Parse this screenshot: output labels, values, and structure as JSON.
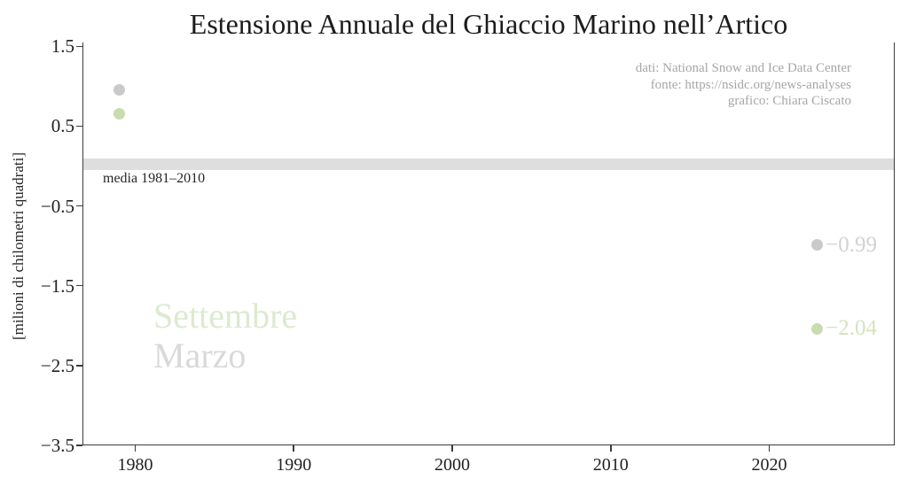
{
  "title": "Estensione Annuale del Ghiaccio Marino nell’Artico",
  "credits": {
    "lines": [
      "dati: National Snow and Ice Data Center",
      "fonte: https://nsidc.org/news-analyses",
      "grafico: Chiara Ciscato"
    ]
  },
  "colors": {
    "ink": "#222222",
    "spine": "#3c3c3c",
    "credits_text": "#a6a6a6",
    "mean_band": "#dedede",
    "marzo": "#cacaca",
    "settembre": "#c9dcb0",
    "watermark_settembre": "#dcead0",
    "watermark_marzo": "#d9d9d9"
  },
  "chart_data": {
    "type": "scatter",
    "title": "Estensione Annuale del Ghiaccio Marino nell’Artico",
    "xlabel": "",
    "ylabel": "[milioni di chilometri quadrati]",
    "grid": false,
    "legend_position": "lower-left watermark",
    "x_range": [
      1976.73,
      2027.97
    ],
    "y_range": [
      -3.5,
      1.548
    ],
    "x_ticks": [
      1980,
      1990,
      2000,
      2010,
      2020
    ],
    "x_tick_labels": [
      "1980",
      "1990",
      "2000",
      "2010",
      "2020"
    ],
    "y_ticks": [
      1.5,
      0.5,
      -0.5,
      -1.5,
      -2.5,
      -3.5
    ],
    "y_tick_labels": [
      "1.5",
      "0.5",
      "−0.5",
      "−1.5",
      "−2.5",
      "−3.5"
    ],
    "mean_band": {
      "value": 0,
      "label": "media 1981–2010",
      "color": "#dedede"
    },
    "series": [
      {
        "name": "Marzo",
        "color": "#cacaca",
        "label_color": "#d2d2d2",
        "points": [
          {
            "x": 1979,
            "y": 0.95
          },
          {
            "x": 2023,
            "y": -0.99,
            "label": "−0.99"
          }
        ]
      },
      {
        "name": "Settembre",
        "color": "#c9dcb0",
        "label_color": "#d4e4be",
        "points": [
          {
            "x": 1979,
            "y": 0.65
          },
          {
            "x": 2023,
            "y": -2.04,
            "label": "−2.04"
          }
        ]
      }
    ]
  }
}
